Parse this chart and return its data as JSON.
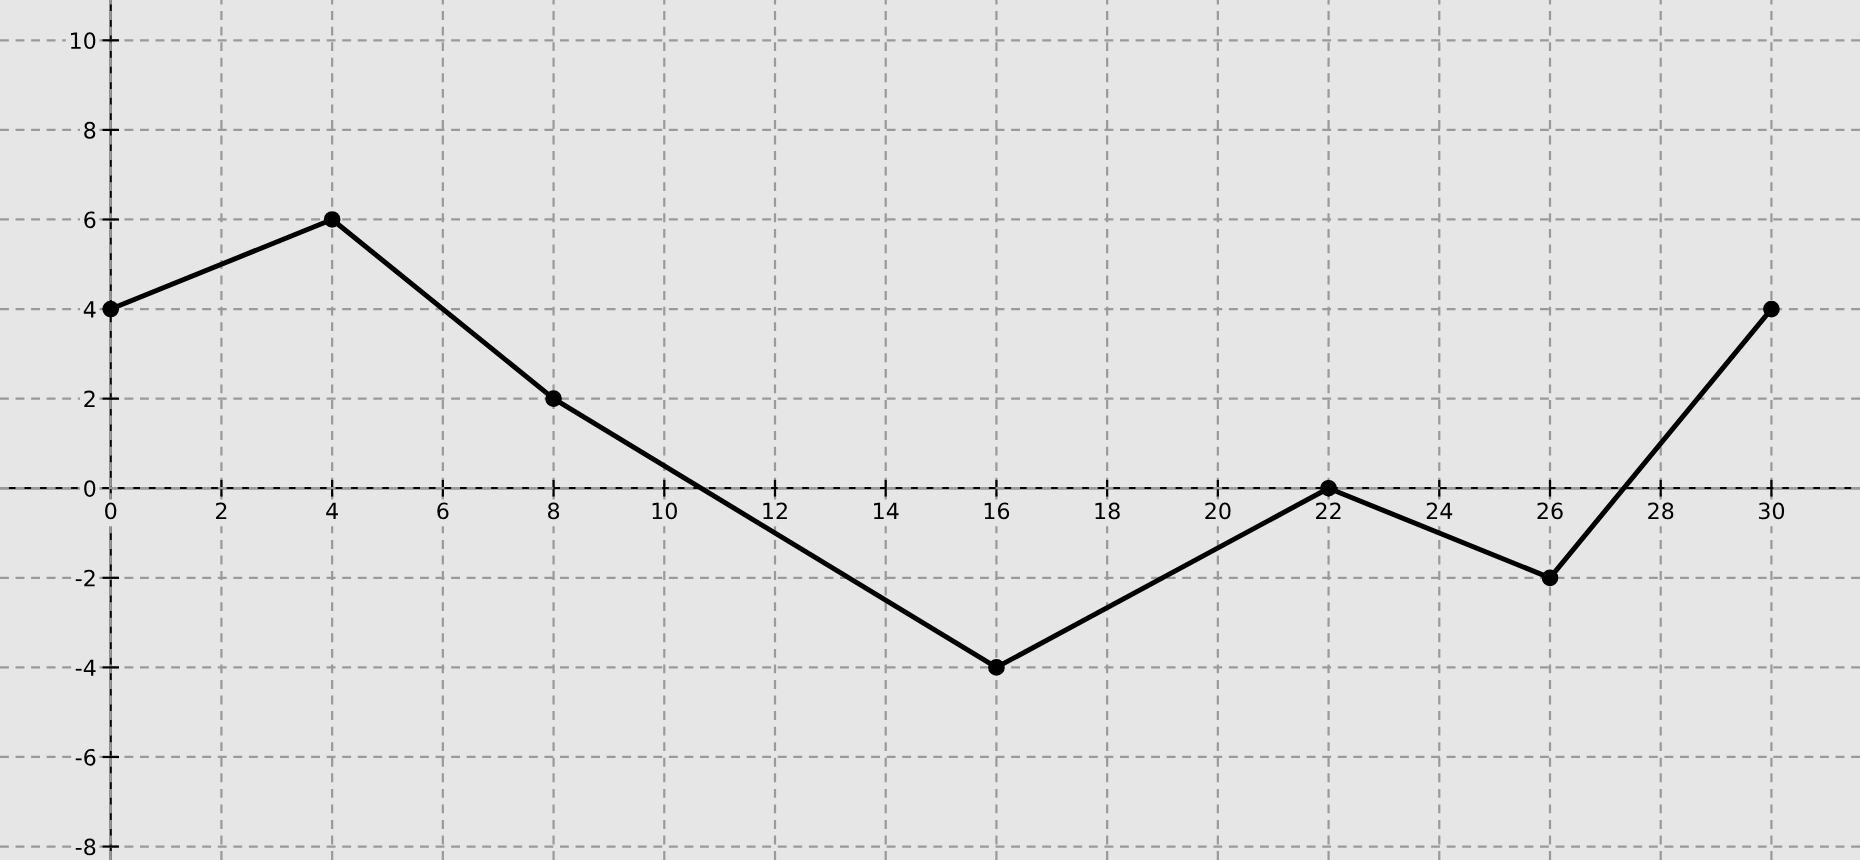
{
  "chart_data": {
    "type": "line",
    "x": [
      0,
      4,
      8,
      16,
      22,
      26,
      30
    ],
    "series": [
      {
        "color": "#000000",
        "values": [
          4,
          6,
          2,
          -4,
          0,
          -2,
          4
        ]
      }
    ],
    "marker": "circle",
    "line_style": "solid",
    "grid": true,
    "xlim": [
      -2,
      31.6
    ],
    "ylim": [
      -8.3,
      10.9
    ],
    "xticks": [
      0,
      2,
      4,
      6,
      8,
      10,
      12,
      14,
      16,
      18,
      20,
      22,
      24,
      26,
      28,
      30
    ],
    "yticks": [
      {
        "value": -8,
        "label": "-8"
      },
      {
        "value": -6,
        "label": "-6"
      },
      {
        "value": -4,
        "label": "-4"
      },
      {
        "value": -2,
        "label": "-2"
      },
      0,
      2,
      4,
      6,
      8,
      10
    ]
  }
}
